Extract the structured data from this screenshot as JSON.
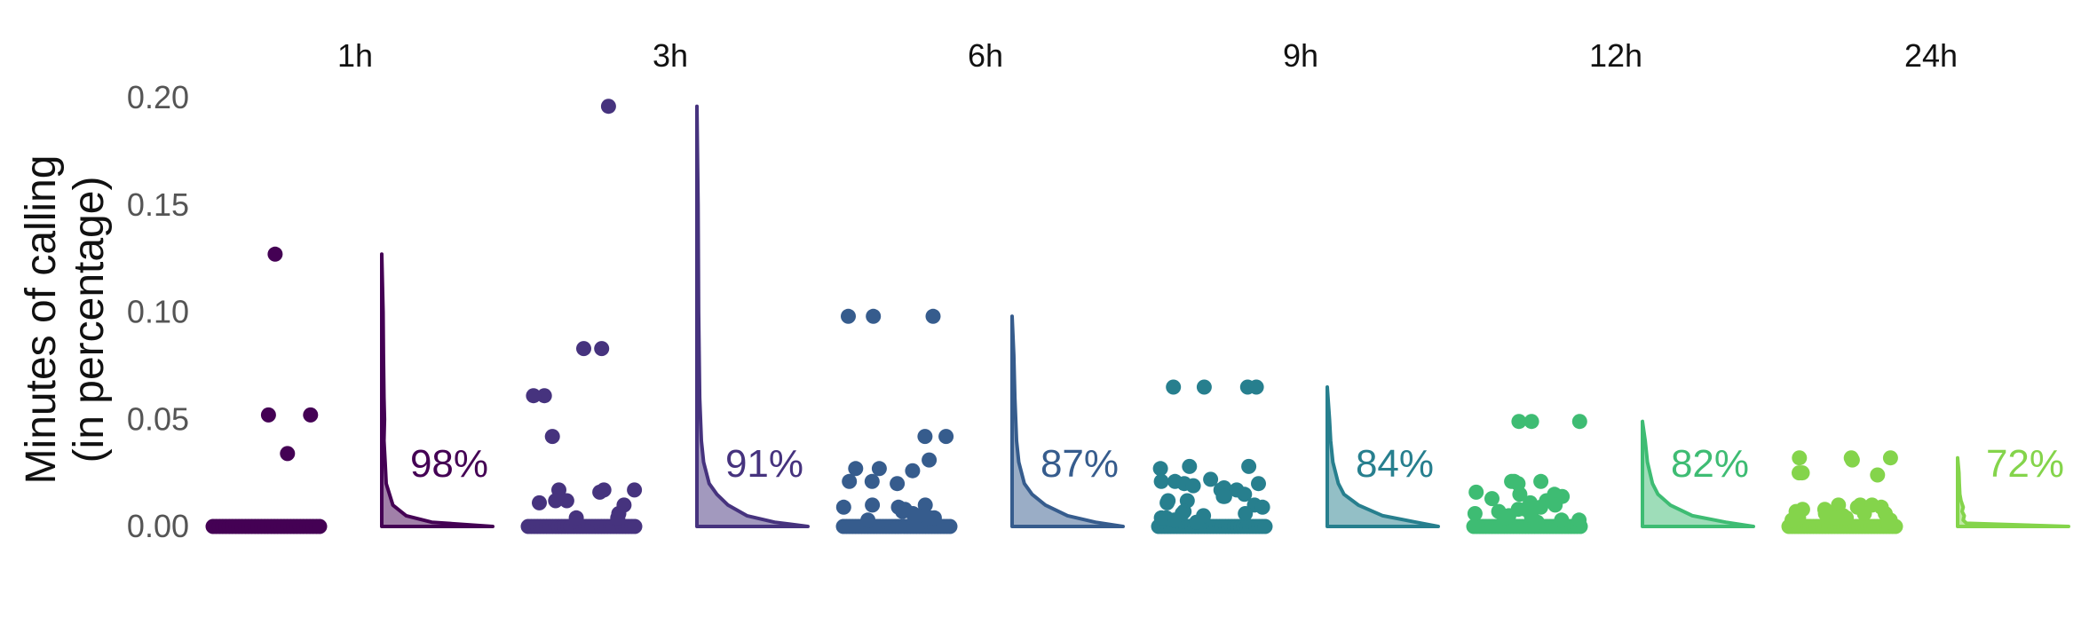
{
  "chart_data": {
    "type": "scatter",
    "ylabel": [
      "Minutes of calling",
      "(in percentage)"
    ],
    "ylim": [
      0,
      0.2
    ],
    "yticks": [
      {
        "value": 0,
        "label": "0.00"
      },
      {
        "value": 0.05,
        "label": "0.05"
      },
      {
        "value": 0.1,
        "label": "0.10"
      },
      {
        "value": 0.15,
        "label": "0.15"
      },
      {
        "value": 0.2,
        "label": "0.20"
      }
    ],
    "grid": false,
    "legend": "none",
    "panels": [
      {
        "facet": "1h",
        "percent_label": "98%",
        "color": "#440154",
        "points": [
          0.127,
          0.052,
          0.052,
          0.034
        ],
        "zero_points": 34,
        "density": [
          [
            0,
            1.0
          ],
          [
            0.002,
            0.45
          ],
          [
            0.005,
            0.22
          ],
          [
            0.01,
            0.1
          ],
          [
            0.02,
            0.04
          ],
          [
            0.03,
            0.03
          ],
          [
            0.04,
            0.02
          ],
          [
            0.05,
            0.025
          ],
          [
            0.06,
            0.02
          ],
          [
            0.08,
            0.015
          ],
          [
            0.1,
            0.012
          ],
          [
            0.127,
            0.0
          ]
        ]
      },
      {
        "facet": "3h",
        "percent_label": "91%",
        "color": "#46337E",
        "points": [
          0.196,
          0.083,
          0.083,
          0.061,
          0.061,
          0.042,
          0.017,
          0.017,
          0.017,
          0.016,
          0.012,
          0.012,
          0.011,
          0.01,
          0.006,
          0.004,
          0.004
        ],
        "zero_points": 36,
        "density": [
          [
            0,
            1.0
          ],
          [
            0.002,
            0.7
          ],
          [
            0.005,
            0.45
          ],
          [
            0.01,
            0.28
          ],
          [
            0.015,
            0.18
          ],
          [
            0.02,
            0.11
          ],
          [
            0.03,
            0.06
          ],
          [
            0.04,
            0.04
          ],
          [
            0.06,
            0.025
          ],
          [
            0.08,
            0.02
          ],
          [
            0.1,
            0.015
          ],
          [
            0.15,
            0.01
          ],
          [
            0.196,
            0.0
          ]
        ]
      },
      {
        "facet": "6h",
        "percent_label": "87%",
        "color": "#365C8D",
        "points": [
          0.098,
          0.098,
          0.098,
          0.042,
          0.042,
          0.031,
          0.027,
          0.027,
          0.026,
          0.021,
          0.021,
          0.02,
          0.01,
          0.01,
          0.009,
          0.009,
          0.008,
          0.007,
          0.006,
          0.005,
          0.004,
          0.004,
          0.003
        ],
        "zero_points": 36,
        "density": [
          [
            0,
            1.0
          ],
          [
            0.002,
            0.75
          ],
          [
            0.005,
            0.5
          ],
          [
            0.01,
            0.3
          ],
          [
            0.015,
            0.18
          ],
          [
            0.02,
            0.11
          ],
          [
            0.03,
            0.06
          ],
          [
            0.04,
            0.04
          ],
          [
            0.06,
            0.025
          ],
          [
            0.08,
            0.015
          ],
          [
            0.098,
            0.0
          ]
        ]
      },
      {
        "facet": "9h",
        "percent_label": "84%",
        "color": "#277F8E",
        "points": [
          0.065,
          0.065,
          0.065,
          0.065,
          0.028,
          0.028,
          0.027,
          0.022,
          0.021,
          0.021,
          0.02,
          0.02,
          0.019,
          0.018,
          0.017,
          0.017,
          0.015,
          0.014,
          0.014,
          0.012,
          0.012,
          0.011,
          0.01,
          0.009,
          0.007,
          0.006,
          0.006,
          0.005,
          0.004,
          0.004,
          0.003,
          0.002
        ],
        "zero_points": 36,
        "density": [
          [
            0,
            1.0
          ],
          [
            0.002,
            0.8
          ],
          [
            0.005,
            0.5
          ],
          [
            0.01,
            0.28
          ],
          [
            0.015,
            0.15
          ],
          [
            0.02,
            0.1
          ],
          [
            0.03,
            0.05
          ],
          [
            0.04,
            0.03
          ],
          [
            0.05,
            0.02
          ],
          [
            0.065,
            0.0
          ]
        ]
      },
      {
        "facet": "12h",
        "percent_label": "82%",
        "color": "#3EBC73",
        "points": [
          0.049,
          0.049,
          0.049,
          0.021,
          0.021,
          0.021,
          0.02,
          0.016,
          0.015,
          0.015,
          0.014,
          0.013,
          0.012,
          0.011,
          0.01,
          0.009,
          0.008,
          0.008,
          0.007,
          0.006,
          0.005,
          0.005,
          0.004,
          0.003,
          0.003,
          0.002
        ],
        "zero_points": 36,
        "density": [
          [
            0,
            1.0
          ],
          [
            0.002,
            0.75
          ],
          [
            0.005,
            0.45
          ],
          [
            0.01,
            0.25
          ],
          [
            0.015,
            0.14
          ],
          [
            0.02,
            0.09
          ],
          [
            0.03,
            0.045
          ],
          [
            0.04,
            0.025
          ],
          [
            0.049,
            0.0
          ]
        ]
      },
      {
        "facet": "24h",
        "percent_label": "72%",
        "color": "#84D44B",
        "points": [
          0.032,
          0.032,
          0.032,
          0.031,
          0.025,
          0.025,
          0.024,
          0.01,
          0.01,
          0.01,
          0.009,
          0.009,
          0.008,
          0.008,
          0.007,
          0.007,
          0.006,
          0.006,
          0.006,
          0.005,
          0.005,
          0.004,
          0.004,
          0.004,
          0.003,
          0.003,
          0.002,
          0.002
        ],
        "zero_points": 36,
        "density": [
          [
            0,
            1.0
          ],
          [
            0.0015,
            0.08
          ],
          [
            0.003,
            0.05
          ],
          [
            0.005,
            0.06
          ],
          [
            0.007,
            0.04
          ],
          [
            0.009,
            0.05
          ],
          [
            0.012,
            0.03
          ],
          [
            0.015,
            0.02
          ],
          [
            0.02,
            0.015
          ],
          [
            0.025,
            0.012
          ],
          [
            0.032,
            0.0
          ]
        ]
      }
    ]
  }
}
